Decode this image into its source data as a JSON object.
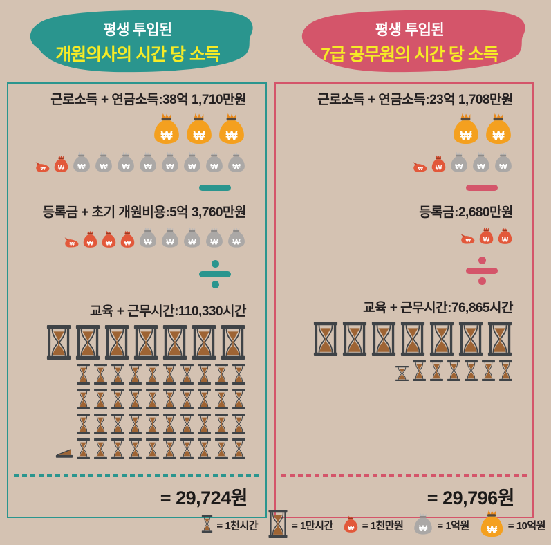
{
  "panels": [
    {
      "accent": "#2a958e",
      "header": {
        "line1": "평생 투입된",
        "line2": "개원의사의 시간 당 소득"
      },
      "income": {
        "label": "근로소득 + 연금소득:38억 1,710만원",
        "big_row": [
          "orange-lg",
          "orange-lg",
          "orange-lg"
        ],
        "small_row": [
          "red-lying",
          "red-sm",
          "gray-sm",
          "gray-sm",
          "gray-sm",
          "gray-sm",
          "gray-sm",
          "gray-sm",
          "gray-sm",
          "gray-sm"
        ]
      },
      "cost": {
        "label": "등록금 + 초기 개원비용:5억 3,760만원",
        "row": [
          "red-lying",
          "red-sm",
          "red-sm",
          "red-sm",
          "gray-sm",
          "gray-sm",
          "gray-sm",
          "gray-sm",
          "gray-sm"
        ]
      },
      "hours": {
        "label": "교육 + 근무시간:110,330시간",
        "big_row": [
          "hg-big",
          "hg-big",
          "hg-big",
          "hg-big",
          "hg-big",
          "hg-big",
          "hg-big"
        ],
        "small_rows": [
          [
            "hg-sm",
            "hg-sm",
            "hg-sm",
            "hg-sm",
            "hg-sm",
            "hg-sm",
            "hg-sm",
            "hg-sm",
            "hg-sm",
            "hg-sm"
          ],
          [
            "hg-sm",
            "hg-sm",
            "hg-sm",
            "hg-sm",
            "hg-sm",
            "hg-sm",
            "hg-sm",
            "hg-sm",
            "hg-sm",
            "hg-sm"
          ],
          [
            "hg-sm",
            "hg-sm",
            "hg-sm",
            "hg-sm",
            "hg-sm",
            "hg-sm",
            "hg-sm",
            "hg-sm",
            "hg-sm",
            "hg-sm"
          ],
          [
            "hg-flat",
            "hg-sm",
            "hg-sm",
            "hg-sm",
            "hg-sm",
            "hg-sm",
            "hg-sm",
            "hg-sm",
            "hg-sm",
            "hg-sm",
            "hg-sm"
          ]
        ]
      },
      "result": "= 29,724원"
    },
    {
      "accent": "#d4556a",
      "header": {
        "line1": "평생 투입된",
        "line2": "7급 공무원의 시간 당 소득"
      },
      "income": {
        "label": "근로소득 + 연금소득:23억 1,708만원",
        "big_row": [
          "orange-lg",
          "orange-lg"
        ],
        "small_row": [
          "red-lying",
          "red-sm",
          "gray-sm",
          "gray-sm",
          "gray-sm"
        ]
      },
      "cost": {
        "label": "등록금:2,680만원",
        "row": [
          "red-lying",
          "red-sm",
          "red-sm"
        ]
      },
      "hours": {
        "label": "교육 + 근무시간:76,865시간",
        "big_row": [
          "hg-big",
          "hg-big",
          "hg-big",
          "hg-big",
          "hg-big",
          "hg-big",
          "hg-big"
        ],
        "small_rows": [
          [
            "hg-short",
            "hg-sm",
            "hg-sm",
            "hg-sm",
            "hg-sm",
            "hg-sm",
            "hg-sm"
          ]
        ]
      },
      "result": "= 29,796원"
    }
  ],
  "legend": [
    {
      "icon": "hg-sm",
      "label": "= 1천시간"
    },
    {
      "icon": "hg-big",
      "label": "= 1만시간"
    },
    {
      "icon": "red-sm",
      "label": "= 1천만원"
    },
    {
      "icon": "gray-sm",
      "label": "= 1억원"
    },
    {
      "icon": "orange-lg",
      "label": "= 10억원"
    }
  ],
  "chart_data": [
    {
      "type": "bar",
      "title": "평생 투입된 개원의사의 시간 당 소득",
      "categories": [
        "근로소득 + 연금소득",
        "등록금 + 초기 개원비용",
        "교육 + 근무시간"
      ],
      "values_text": [
        "38억 1,710만원",
        "5억 3,760만원",
        "110,330시간"
      ],
      "values": [
        3817100000,
        537600000,
        110330
      ],
      "result": "= 29,724원",
      "pictogram_units": {
        "big_hourglass": 10000,
        "small_hourglass": 1000,
        "red_bag": 10000000,
        "gray_bag": 100000000,
        "orange_bag": 1000000000
      }
    },
    {
      "type": "bar",
      "title": "평생 투입된 7급 공무원의 시간 당 소득",
      "categories": [
        "근로소득 + 연금소득",
        "등록금",
        "교육 + 근무시간"
      ],
      "values_text": [
        "23억 1,708만원",
        "2,680만원",
        "76,865시간"
      ],
      "values": [
        2317080000,
        26800000,
        76865
      ],
      "result": "= 29,796원",
      "pictogram_units": {
        "big_hourglass": 10000,
        "small_hourglass": 1000,
        "red_bag": 10000000,
        "gray_bag": 100000000,
        "orange_bag": 1000000000
      }
    }
  ],
  "colors": {
    "background": "#d4c2b2",
    "teal_accent": "#2a958e",
    "red_accent": "#d4556a",
    "title_yellow": "#f6eb26",
    "text_dark": "#242021",
    "orange_bag": "#f4a01f",
    "red_bag": "#e2583a",
    "gray_bag": "#aba8a6",
    "hourglass_frame": "#3f4347",
    "sand": "#9e6434"
  }
}
